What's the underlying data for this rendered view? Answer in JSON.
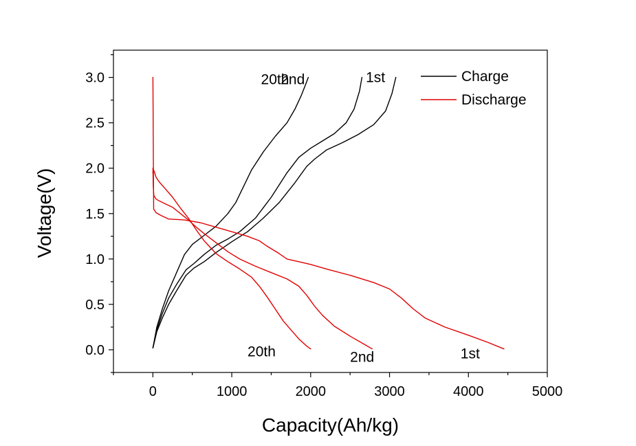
{
  "chart_data": {
    "type": "line",
    "title": "",
    "xlabel": "Capacity(Ah/kg)",
    "ylabel": "Voltage(V)",
    "xlim": [
      -500,
      5000
    ],
    "ylim": [
      -0.25,
      3.3
    ],
    "x_ticks": [
      0,
      1000,
      2000,
      3000,
      4000,
      5000
    ],
    "x_tick_labels": [
      "0",
      "1000",
      "2000",
      "3000",
      "4000",
      "5000"
    ],
    "y_ticks": [
      0.0,
      0.5,
      1.0,
      1.5,
      2.0,
      2.5,
      3.0
    ],
    "y_tick_labels": [
      "0.0",
      "0.5",
      "1.0",
      "1.5",
      "2.0",
      "2.5",
      "3.0"
    ],
    "grid": false,
    "legend_position": "top-right",
    "legend": [
      {
        "label": "Charge",
        "color": "#000000"
      },
      {
        "label": "Discharge",
        "color": "#e00000"
      }
    ],
    "series": [
      {
        "group": "Charge",
        "cycle": "1st",
        "color": "#000000",
        "x": [
          0,
          50,
          120,
          200,
          300,
          420,
          520,
          650,
          800,
          1000,
          1200,
          1400,
          1600,
          1800,
          1950,
          2050,
          2200,
          2400,
          2600,
          2800,
          2950,
          3030,
          3080
        ],
        "y": [
          0.02,
          0.2,
          0.35,
          0.5,
          0.65,
          0.82,
          0.9,
          0.97,
          1.07,
          1.19,
          1.3,
          1.45,
          1.62,
          1.84,
          2.02,
          2.1,
          2.2,
          2.28,
          2.37,
          2.48,
          2.63,
          2.82,
          3.0
        ]
      },
      {
        "group": "Charge",
        "cycle": "2nd",
        "color": "#000000",
        "x": [
          0,
          50,
          120,
          200,
          300,
          420,
          520,
          650,
          800,
          950,
          1100,
          1300,
          1500,
          1700,
          1850,
          2000,
          2150,
          2300,
          2450,
          2550,
          2620,
          2650
        ],
        "y": [
          0.02,
          0.22,
          0.4,
          0.57,
          0.72,
          0.88,
          0.95,
          1.05,
          1.15,
          1.22,
          1.3,
          1.45,
          1.68,
          1.95,
          2.12,
          2.22,
          2.3,
          2.38,
          2.5,
          2.65,
          2.85,
          3.0
        ]
      },
      {
        "group": "Charge",
        "cycle": "20th",
        "color": "#000000",
        "x": [
          0,
          50,
          120,
          200,
          300,
          400,
          500,
          650,
          800,
          950,
          1050,
          1150,
          1250,
          1400,
          1550,
          1700,
          1800,
          1880,
          1940,
          1970
        ],
        "y": [
          0.02,
          0.25,
          0.45,
          0.65,
          0.85,
          1.05,
          1.16,
          1.26,
          1.36,
          1.5,
          1.62,
          1.8,
          1.98,
          2.18,
          2.35,
          2.5,
          2.65,
          2.8,
          2.93,
          3.0
        ]
      },
      {
        "group": "Discharge",
        "cycle": "1st",
        "color": "#e00000",
        "x": [
          0,
          3,
          6,
          10,
          40,
          100,
          200,
          400,
          600,
          800,
          1000,
          1200,
          1350,
          1450,
          1600,
          1700,
          1850,
          2000,
          2200,
          2500,
          2800,
          3000,
          3150,
          3300,
          3450,
          3700,
          4000,
          4250,
          4450
        ],
        "y": [
          3.0,
          2.6,
          2.0,
          1.55,
          1.51,
          1.48,
          1.44,
          1.43,
          1.4,
          1.35,
          1.3,
          1.25,
          1.2,
          1.14,
          1.06,
          1.0,
          0.97,
          0.94,
          0.89,
          0.82,
          0.74,
          0.67,
          0.57,
          0.45,
          0.35,
          0.25,
          0.16,
          0.08,
          0.01
        ]
      },
      {
        "group": "Discharge",
        "cycle": "2nd",
        "color": "#e00000",
        "x": [
          0,
          5,
          12,
          40,
          80,
          150,
          250,
          350,
          450,
          550,
          650,
          800,
          950,
          1100,
          1300,
          1500,
          1700,
          1850,
          1950,
          2050,
          2150,
          2300,
          2500,
          2700,
          2780
        ],
        "y": [
          2.0,
          1.8,
          1.7,
          1.66,
          1.64,
          1.61,
          1.57,
          1.5,
          1.43,
          1.35,
          1.28,
          1.18,
          1.08,
          1.0,
          0.92,
          0.85,
          0.78,
          0.7,
          0.6,
          0.48,
          0.38,
          0.26,
          0.15,
          0.05,
          0.01
        ]
      },
      {
        "group": "Discharge",
        "cycle": "20th",
        "color": "#e00000",
        "x": [
          0,
          5,
          15,
          40,
          80,
          150,
          250,
          350,
          450,
          550,
          650,
          800,
          950,
          1100,
          1250,
          1350,
          1450,
          1550,
          1650,
          1750,
          1850,
          1950,
          2000
        ],
        "y": [
          1.95,
          1.98,
          1.97,
          1.9,
          1.85,
          1.78,
          1.68,
          1.56,
          1.45,
          1.32,
          1.2,
          1.06,
          0.97,
          0.89,
          0.8,
          0.7,
          0.58,
          0.45,
          0.32,
          0.22,
          0.12,
          0.04,
          0.01
        ]
      }
    ],
    "annotations": [
      {
        "text": "20th",
        "x": 1370,
        "y": 2.98,
        "anchor": "start"
      },
      {
        "text": "2nd",
        "x": 1620,
        "y": 2.98,
        "anchor": "start"
      },
      {
        "text": "1st",
        "x": 2700,
        "y": 3.0,
        "anchor": "start"
      },
      {
        "text": "20th",
        "x": 1200,
        "y": -0.02,
        "anchor": "start"
      },
      {
        "text": "2nd",
        "x": 2500,
        "y": -0.08,
        "anchor": "start"
      },
      {
        "text": "1st",
        "x": 3900,
        "y": -0.04,
        "anchor": "start"
      }
    ]
  }
}
